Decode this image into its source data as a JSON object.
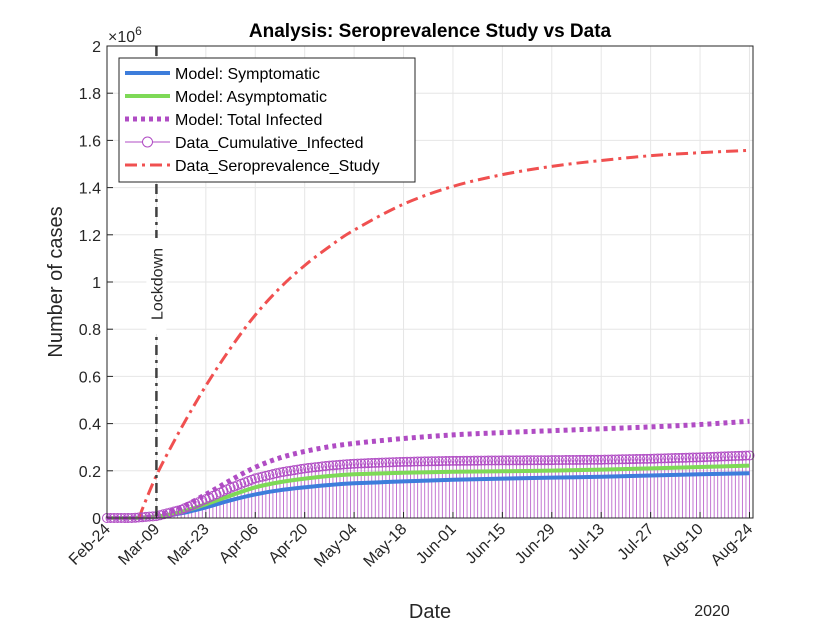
{
  "chart_data": {
    "type": "line",
    "title": "Analysis: Seroprevalence Study vs Data",
    "xlabel": "Date",
    "ylabel": "Number of cases",
    "y_exponent_label": "×10",
    "y_exponent_power": "6",
    "year_label": "2020",
    "ylim": [
      0,
      2000000
    ],
    "xlim": [
      0,
      183
    ],
    "grid": true,
    "legend_position": "top-left",
    "y_ticks": [
      {
        "value": 0,
        "label": "0"
      },
      {
        "value": 200000,
        "label": "0.2"
      },
      {
        "value": 400000,
        "label": "0.4"
      },
      {
        "value": 600000,
        "label": "0.6"
      },
      {
        "value": 800000,
        "label": "0.8"
      },
      {
        "value": 1000000,
        "label": "1"
      },
      {
        "value": 1200000,
        "label": "1.2"
      },
      {
        "value": 1400000,
        "label": "1.4"
      },
      {
        "value": 1600000,
        "label": "1.6"
      },
      {
        "value": 1800000,
        "label": "1.8"
      },
      {
        "value": 2000000,
        "label": "2"
      }
    ],
    "x_ticks": [
      {
        "day": 0,
        "label": "Feb-24"
      },
      {
        "day": 14,
        "label": "Mar-09"
      },
      {
        "day": 28,
        "label": "Mar-23"
      },
      {
        "day": 42,
        "label": "Apr-06"
      },
      {
        "day": 56,
        "label": "Apr-20"
      },
      {
        "day": 70,
        "label": "May-04"
      },
      {
        "day": 84,
        "label": "May-18"
      },
      {
        "day": 98,
        "label": "Jun-01"
      },
      {
        "day": 112,
        "label": "Jun-15"
      },
      {
        "day": 126,
        "label": "Jun-29"
      },
      {
        "day": 140,
        "label": "Jul-13"
      },
      {
        "day": 154,
        "label": "Jul-27"
      },
      {
        "day": 168,
        "label": "Aug-10"
      },
      {
        "day": 182,
        "label": "Aug-24"
      }
    ],
    "annotations": [
      {
        "type": "vline",
        "day": 14,
        "label": "Lockdown",
        "color": "#404040"
      }
    ],
    "series": [
      {
        "name": "Model: Symptomatic",
        "color": "#3D7DDB",
        "style": "solid",
        "x": [
          0,
          7,
          14,
          21,
          28,
          35,
          42,
          49,
          56,
          63,
          70,
          84,
          98,
          112,
          126,
          140,
          154,
          168,
          182
        ],
        "y": [
          0,
          0,
          5000,
          20000,
          45000,
          75000,
          100000,
          118000,
          130000,
          140000,
          147000,
          155000,
          162000,
          167000,
          171000,
          175000,
          180000,
          185000,
          190000
        ]
      },
      {
        "name": "Model: Asymptomatic",
        "color": "#7ED957",
        "style": "solid",
        "x": [
          0,
          7,
          14,
          21,
          28,
          35,
          42,
          49,
          56,
          63,
          70,
          84,
          98,
          112,
          126,
          140,
          154,
          168,
          182
        ],
        "y": [
          0,
          0,
          6000,
          26000,
          58000,
          95000,
          130000,
          152000,
          167000,
          178000,
          185000,
          192000,
          196000,
          198000,
          201000,
          205000,
          210000,
          216000,
          222000
        ]
      },
      {
        "name": "Model: Total Infected",
        "color": "#B04CC4",
        "style": "dotted",
        "x": [
          0,
          7,
          14,
          21,
          28,
          35,
          42,
          49,
          56,
          63,
          70,
          84,
          98,
          112,
          126,
          140,
          154,
          168,
          182
        ],
        "y": [
          0,
          0,
          10000,
          45000,
          100000,
          160000,
          215000,
          255000,
          282000,
          302000,
          316000,
          337000,
          352000,
          362000,
          370000,
          378000,
          386000,
          396000,
          410000
        ]
      },
      {
        "name": "Data_Cumulative_Infected",
        "color": "#B04CC4",
        "style": "stem",
        "x": [
          0,
          7,
          14,
          21,
          28,
          35,
          42,
          49,
          56,
          63,
          70,
          84,
          98,
          112,
          126,
          140,
          154,
          168,
          182
        ],
        "y": [
          0,
          0,
          8000,
          35000,
          80000,
          128000,
          168000,
          193000,
          210000,
          222000,
          230000,
          238000,
          242000,
          244000,
          245000,
          247000,
          251000,
          257000,
          265000
        ]
      },
      {
        "name": "Data_Seroprevalence_Study",
        "color": "#F05050",
        "style": "dashdot",
        "x": [
          9,
          14,
          21,
          28,
          35,
          42,
          49,
          56,
          63,
          70,
          84,
          98,
          112,
          126,
          140,
          154,
          168,
          182
        ],
        "y": [
          0,
          180000,
          380000,
          560000,
          720000,
          860000,
          975000,
          1070000,
          1150000,
          1220000,
          1330000,
          1405000,
          1455000,
          1490000,
          1515000,
          1535000,
          1548000,
          1558000
        ]
      }
    ]
  }
}
